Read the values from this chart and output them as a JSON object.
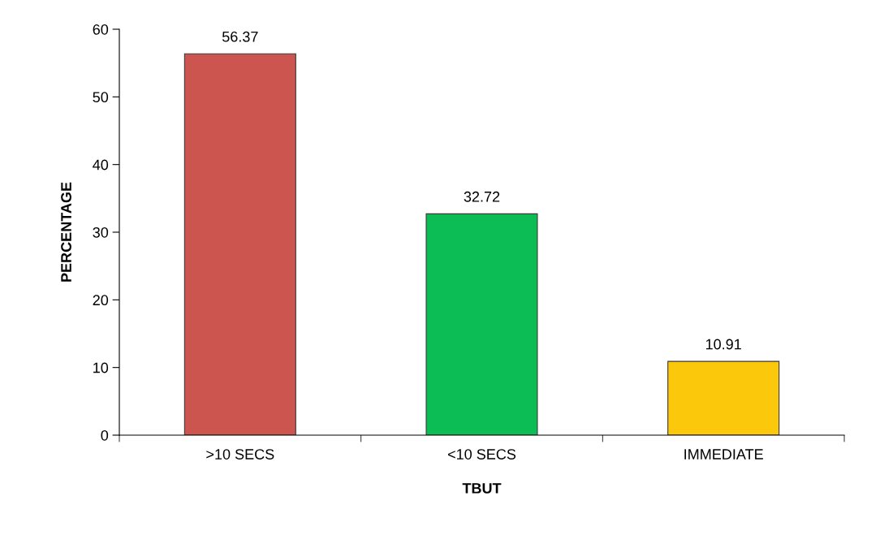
{
  "chart_data": {
    "type": "bar",
    "xlabel": "TBUT",
    "ylabel": "PERCENTAGE",
    "categories": [
      ">10 SECS",
      "<10 SECS",
      "IMMEDIATE"
    ],
    "values": [
      56.37,
      32.72,
      10.91
    ],
    "colors": [
      "#cd5550",
      "#0cbd55",
      "#fcc80c"
    ],
    "ylim": [
      0,
      60
    ],
    "yticks": [
      0,
      10,
      20,
      30,
      40,
      50,
      60
    ],
    "data_labels": true,
    "grid": false,
    "legend": false
  }
}
